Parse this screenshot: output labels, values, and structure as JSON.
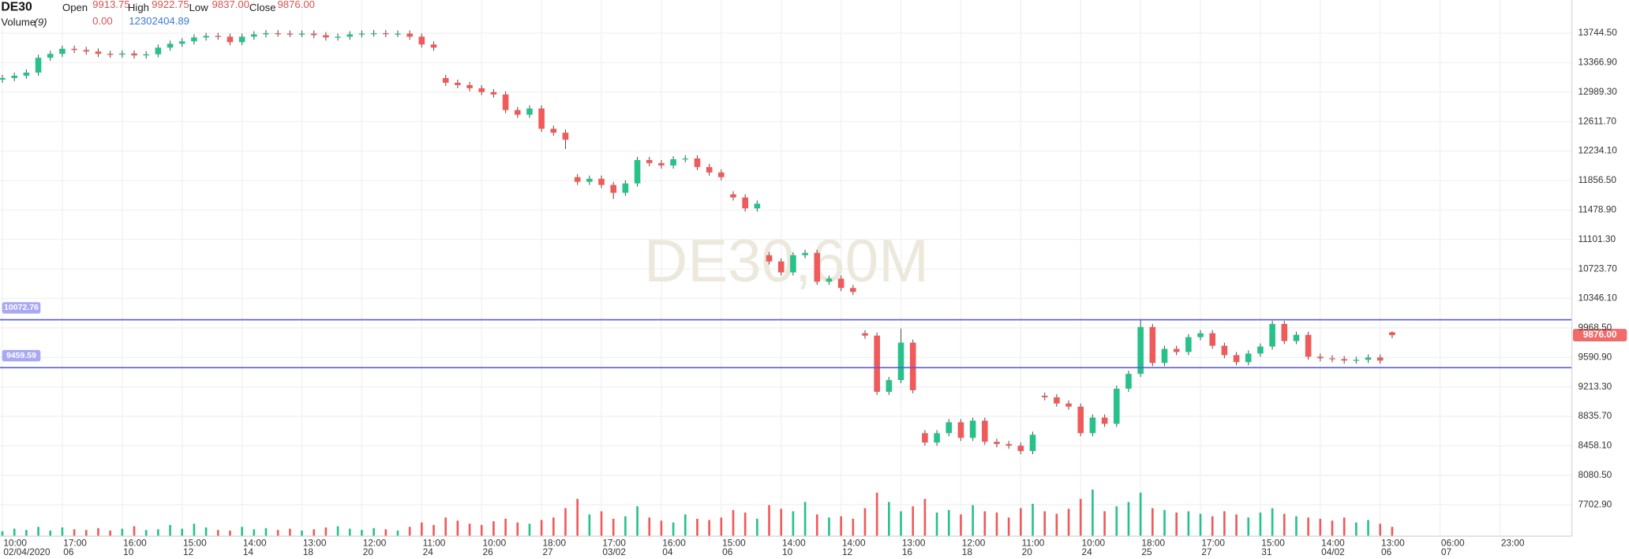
{
  "header": {
    "symbol": "DE30",
    "fields": [
      {
        "name": "Open",
        "value": "9913.75"
      },
      {
        "name": "High",
        "value": "9922.75"
      },
      {
        "name": "Low",
        "value": "9837.00"
      },
      {
        "name": "Close",
        "value": "9876.00"
      }
    ],
    "volume": {
      "name": "Volume",
      "period": "(9)",
      "value": "0.00",
      "average": "12302404.89"
    }
  },
  "chart_data": {
    "type": "candlestick",
    "watermark": "DE30,60M",
    "up_color": "#26c28a",
    "down_color": "#ef5a5a",
    "grid": true,
    "xlim": [
      -0.2,
      131
    ],
    "ylim": [
      7300,
      14170
    ],
    "volume_lim": [
      0,
      100
    ],
    "yticks": [
      {
        "value": 13744.5,
        "label": "13744.50"
      },
      {
        "value": 13366.9,
        "label": "13366.90"
      },
      {
        "value": 12989.3,
        "label": "12989.30"
      },
      {
        "value": 12611.7,
        "label": "12611.70"
      },
      {
        "value": 12234.1,
        "label": "12234.10"
      },
      {
        "value": 11856.5,
        "label": "11856.50"
      },
      {
        "value": 11478.9,
        "label": "11478.90"
      },
      {
        "value": 11101.3,
        "label": "11101.30"
      },
      {
        "value": 10723.7,
        "label": "10723.70"
      },
      {
        "value": 10346.1,
        "label": "10346.10"
      },
      {
        "value": 9968.5,
        "label": "9968.50"
      },
      {
        "value": 9590.9,
        "label": "9590.90"
      },
      {
        "value": 9213.3,
        "label": "9213.30"
      },
      {
        "value": 8835.7,
        "label": "8835.70"
      },
      {
        "value": 8458.1,
        "label": "8458.10"
      },
      {
        "value": 8080.5,
        "label": "8080.50"
      },
      {
        "value": 7702.9,
        "label": "7702.90"
      }
    ],
    "xticks": [
      {
        "value": 0,
        "label": "10:00",
        "date": "02/04/2020"
      },
      {
        "value": 5,
        "label": "17:00",
        "date": "06"
      },
      {
        "value": 10,
        "label": "16:00",
        "date": "10"
      },
      {
        "value": 15,
        "label": "15:00",
        "date": "12"
      },
      {
        "value": 20,
        "label": "14:00",
        "date": "14"
      },
      {
        "value": 25,
        "label": "13:00",
        "date": "18"
      },
      {
        "value": 30,
        "label": "12:00",
        "date": "20"
      },
      {
        "value": 35,
        "label": "11:00",
        "date": "24"
      },
      {
        "value": 40,
        "label": "10:00",
        "date": "26"
      },
      {
        "value": 45,
        "label": "18:00",
        "date": "27"
      },
      {
        "value": 50,
        "label": "17:00",
        "date": "03/02"
      },
      {
        "value": 55,
        "label": "16:00",
        "date": "04"
      },
      {
        "value": 60,
        "label": "15:00",
        "date": "06"
      },
      {
        "value": 65,
        "label": "14:00",
        "date": "10"
      },
      {
        "value": 70,
        "label": "14:00",
        "date": "12"
      },
      {
        "value": 75,
        "label": "13:00",
        "date": "16"
      },
      {
        "value": 80,
        "label": "12:00",
        "date": "18"
      },
      {
        "value": 85,
        "label": "11:00",
        "date": "20"
      },
      {
        "value": 90,
        "label": "10:00",
        "date": "24"
      },
      {
        "value": 95,
        "label": "18:00",
        "date": "25"
      },
      {
        "value": 100,
        "label": "17:00",
        "date": "27"
      },
      {
        "value": 105,
        "label": "15:00",
        "date": "31"
      },
      {
        "value": 110,
        "label": "14:00",
        "date": "04/02"
      },
      {
        "value": 115,
        "label": "13:00",
        "date": "06"
      },
      {
        "value": 120,
        "label": "06:00",
        "date": "07"
      },
      {
        "value": 125,
        "label": "23:00"
      }
    ],
    "price_lines": [
      10072.76,
      9459.59
    ],
    "last_price": {
      "value": 9876,
      "label": "9876.00"
    },
    "open": [
      13150,
      13170,
      13200,
      13240,
      13430,
      13480,
      13545,
      13530,
      13510,
      13480,
      13470,
      13485,
      13460,
      13475,
      13560,
      13610,
      13640,
      13690,
      13710,
      13700,
      13630,
      13700,
      13730,
      13745,
      13740,
      13735,
      13740,
      13720,
      13690,
      13700,
      13730,
      13740,
      13745,
      13735,
      13740,
      13700,
      13600,
      13170,
      13110,
      13080,
      13040,
      12990,
      12960,
      12760,
      12700,
      12780,
      12520,
      12470,
      11900,
      11840,
      11880,
      11800,
      11700,
      11820,
      12120,
      12080,
      12050,
      12130,
      12140,
      12030,
      11960,
      11680,
      11640,
      11500,
      10900,
      10820,
      10680,
      10900,
      10930,
      10560,
      10600,
      10480,
      9900,
      9870,
      9150,
      9300,
      9780,
      8620,
      8500,
      8620,
      8760,
      8560,
      8780,
      8510,
      8480,
      8460,
      8390,
      9100,
      9080,
      9000,
      8960,
      8620,
      8820,
      8740,
      9190,
      9380,
      9980,
      9520,
      9700,
      9660,
      9850,
      9900,
      9740,
      9620,
      9530,
      9640,
      9730,
      10020,
      9800,
      9880,
      9600,
      9580,
      9570,
      9550,
      9560,
      9590,
      9913.75
    ],
    "high": [
      13210,
      13240,
      13280,
      13470,
      13520,
      13585,
      13585,
      13570,
      13550,
      13520,
      13525,
      13525,
      13515,
      13600,
      13650,
      13680,
      13730,
      13750,
      13750,
      13740,
      13740,
      13770,
      13785,
      13785,
      13780,
      13780,
      13780,
      13760,
      13740,
      13770,
      13780,
      13785,
      13785,
      13780,
      13780,
      13740,
      13640,
      13210,
      13150,
      13120,
      13080,
      13030,
      13000,
      12800,
      12820,
      12820,
      12560,
      12510,
      11940,
      11920,
      11920,
      11840,
      11860,
      12160,
      12160,
      12120,
      12170,
      12180,
      12180,
      12070,
      12000,
      11720,
      11680,
      11600,
      10940,
      10860,
      10940,
      10970,
      10970,
      10640,
      10640,
      10520,
      9940,
      9910,
      9340,
      9960,
      9820,
      8660,
      8660,
      8800,
      8800,
      8820,
      8820,
      8550,
      8520,
      8500,
      8640,
      9140,
      9120,
      9040,
      9000,
      8860,
      8860,
      9230,
      9420,
      10080,
      10020,
      9740,
      9740,
      9890,
      9940,
      9940,
      9780,
      9660,
      9680,
      9770,
      10060,
      10060,
      9920,
      9920,
      9640,
      9620,
      9610,
      9600,
      9630,
      9630,
      9922.75
    ],
    "low": [
      13110,
      13130,
      13160,
      13200,
      13390,
      13440,
      13490,
      13470,
      13440,
      13430,
      13430,
      13420,
      13420,
      13435,
      13520,
      13570,
      13600,
      13650,
      13660,
      13590,
      13590,
      13660,
      13690,
      13700,
      13695,
      13695,
      13680,
      13650,
      13650,
      13660,
      13690,
      13700,
      13695,
      13695,
      13660,
      13560,
      13520,
      13070,
      13040,
      13000,
      12950,
      12920,
      12720,
      12660,
      12660,
      12480,
      12430,
      12260,
      11800,
      11800,
      11760,
      11620,
      11660,
      11780,
      12040,
      12010,
      12010,
      12090,
      11990,
      11920,
      11860,
      11600,
      11460,
      11460,
      10780,
      10640,
      10640,
      10860,
      10520,
      10520,
      10440,
      10390,
      9830,
      9110,
      9110,
      9260,
      9130,
      8460,
      8460,
      8580,
      8520,
      8520,
      8470,
      8440,
      8420,
      8350,
      8350,
      9040,
      8960,
      8920,
      8580,
      8580,
      8700,
      8700,
      9150,
      9340,
      9480,
      9480,
      9620,
      9620,
      9810,
      9700,
      9580,
      9490,
      9490,
      9600,
      9690,
      9760,
      9760,
      9560,
      9540,
      9530,
      9510,
      9510,
      9520,
      9510,
      9837
    ],
    "close": [
      13170,
      13200,
      13240,
      13430,
      13480,
      13545,
      13530,
      13510,
      13480,
      13470,
      13485,
      13460,
      13475,
      13560,
      13610,
      13640,
      13690,
      13710,
      13700,
      13630,
      13700,
      13730,
      13745,
      13740,
      13735,
      13740,
      13720,
      13690,
      13700,
      13730,
      13740,
      13745,
      13735,
      13740,
      13700,
      13600,
      13560,
      13110,
      13080,
      13040,
      12990,
      12960,
      12760,
      12700,
      12780,
      12520,
      12470,
      12380,
      11840,
      11880,
      11800,
      11700,
      11820,
      12120,
      12080,
      12050,
      12130,
      12140,
      12030,
      11960,
      11900,
      11640,
      11500,
      11560,
      10820,
      10680,
      10900,
      10930,
      10560,
      10600,
      10480,
      10430,
      9870,
      9150,
      9300,
      9780,
      9170,
      8500,
      8620,
      8760,
      8560,
      8780,
      8510,
      8480,
      8460,
      8390,
      8600,
      9080,
      9000,
      8960,
      8620,
      8820,
      8740,
      9190,
      9380,
      9980,
      9520,
      9700,
      9660,
      9850,
      9900,
      9740,
      9620,
      9530,
      9640,
      9730,
      10020,
      9800,
      9880,
      9600,
      9580,
      9570,
      9550,
      9560,
      9590,
      9550,
      9876
    ],
    "volume": [
      8,
      12,
      10,
      15,
      9,
      14,
      11,
      10,
      13,
      9,
      12,
      16,
      10,
      11,
      18,
      12,
      20,
      14,
      10,
      9,
      15,
      11,
      13,
      10,
      12,
      9,
      11,
      14,
      16,
      12,
      10,
      13,
      11,
      9,
      15,
      22,
      18,
      30,
      25,
      20,
      18,
      24,
      28,
      22,
      20,
      26,
      30,
      45,
      60,
      35,
      40,
      28,
      32,
      48,
      30,
      25,
      22,
      35,
      28,
      26,
      30,
      42,
      38,
      28,
      50,
      44,
      40,
      55,
      35,
      30,
      32,
      28,
      45,
      70,
      55,
      40,
      48,
      60,
      38,
      42,
      35,
      50,
      40,
      38,
      30,
      45,
      52,
      40,
      36,
      44,
      60,
      75,
      40,
      48,
      55,
      70,
      45,
      42,
      38,
      40,
      36,
      32,
      40,
      35,
      30,
      38,
      45,
      36,
      32,
      30,
      28,
      25,
      30,
      22,
      26,
      20,
      15
    ]
  }
}
